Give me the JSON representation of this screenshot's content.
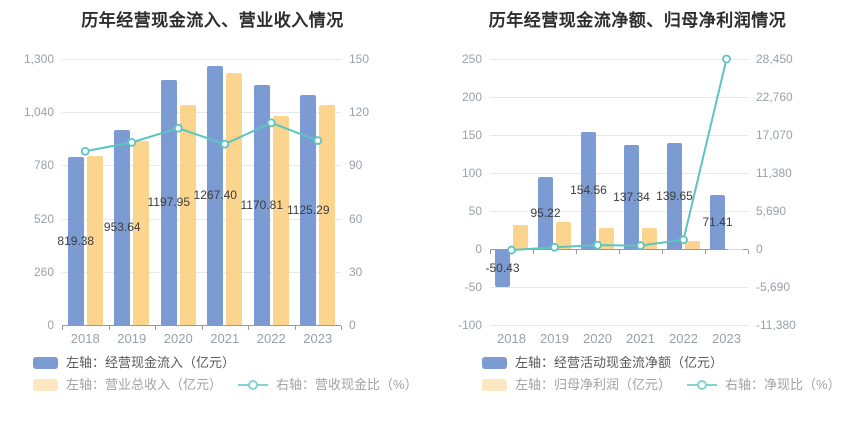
{
  "page_background": "#ffffff",
  "colors": {
    "bar_blue": "#7C9BD2",
    "bar_yellow": "#FBD48E",
    "line_teal": "#5CC5C2",
    "gridline": "#e8e8e8",
    "axis_line": "#9a9a9a",
    "axis_label": "#9aa0a8",
    "title_text": "#2e2e2e",
    "data_label": "#3d3d3d"
  },
  "chart_data": [
    {
      "type": "bar+line",
      "title": "历年经营现金流入、营业收入情况",
      "categories": [
        "2018",
        "2019",
        "2020",
        "2021",
        "2022",
        "2023"
      ],
      "left_axis": {
        "min": 0,
        "max": 1300,
        "tick_labels": [
          "1,300",
          "1,040",
          "780",
          "520",
          "260",
          "0"
        ]
      },
      "right_axis": {
        "min": 0,
        "max": 150,
        "tick_labels": [
          "150",
          "120",
          "90",
          "60",
          "30",
          "0"
        ]
      },
      "legend_position": "bottom-left",
      "grid": true,
      "series": [
        {
          "name": "左轴：经营现金流入（亿元）",
          "type": "bar",
          "axis": "left",
          "color": "#7C9BD2",
          "show_labels": true,
          "values": [
            819.38,
            953.64,
            1197.95,
            1267.4,
            1170.81,
            1125.29
          ]
        },
        {
          "name": "左轴：营业总收入（亿元）",
          "type": "bar",
          "axis": "left",
          "color": "#FBD48E",
          "show_labels": false,
          "values": [
            828,
            898,
            1074,
            1232,
            1022,
            1073
          ]
        },
        {
          "name": "右轴：营收现金比（%）",
          "type": "line",
          "axis": "right",
          "color": "#5CC5C2",
          "show_labels": false,
          "values": [
            98,
            103,
            111,
            102,
            114,
            104
          ]
        }
      ]
    },
    {
      "type": "bar+line",
      "title": "历年经营现金流净额、归母净利润情况",
      "categories": [
        "2018",
        "2019",
        "2020",
        "2021",
        "2022",
        "2023"
      ],
      "left_axis": {
        "min": -100,
        "max": 250,
        "tick_labels": [
          "250",
          "200",
          "150",
          "100",
          "50",
          "0",
          "-50",
          "-100"
        ]
      },
      "right_axis": {
        "min": -11380,
        "max": 28450,
        "tick_labels": [
          "28,450",
          "22,760",
          "17,070",
          "11,380",
          "5,690",
          "0",
          "-5,690",
          "-11,380"
        ]
      },
      "legend_position": "bottom-left",
      "grid": true,
      "series": [
        {
          "name": "左轴：经营活动现金流净额（亿元）",
          "type": "bar",
          "axis": "left",
          "color": "#7C9BD2",
          "show_labels": true,
          "values": [
            -50.43,
            95.22,
            154.56,
            137.34,
            139.65,
            71.41
          ]
        },
        {
          "name": "左轴：归母净利润（亿元）",
          "type": "bar",
          "axis": "left",
          "color": "#FBD48E",
          "show_labels": false,
          "values": [
            32,
            35.5,
            27,
            28,
            10,
            0.3
          ]
        },
        {
          "name": "右轴：净现比（%）",
          "type": "line",
          "axis": "right",
          "color": "#5CC5C2",
          "show_labels": false,
          "values": [
            -160,
            268,
            580,
            498,
            1383,
            28450
          ]
        }
      ]
    }
  ]
}
